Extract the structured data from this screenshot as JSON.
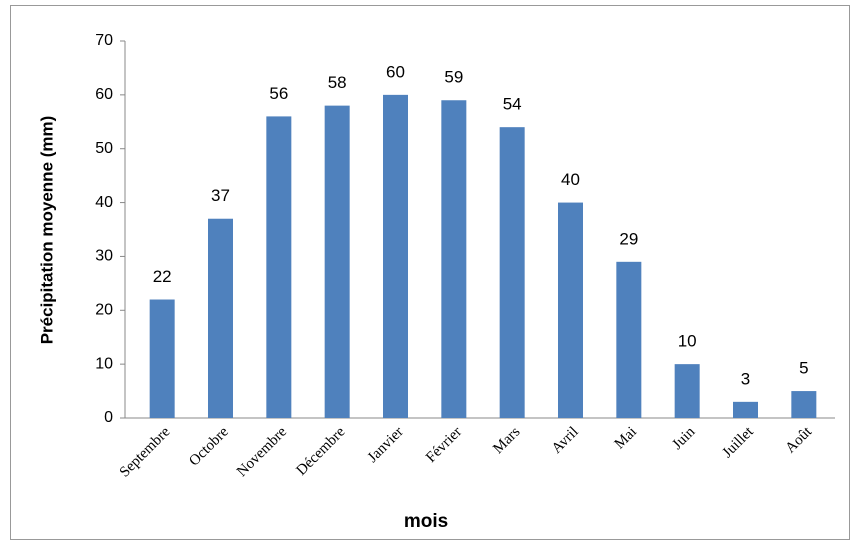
{
  "chart_data": {
    "type": "bar",
    "categories": [
      "Septembre",
      "Octobre",
      "Novembre",
      "Décembre",
      "Janvier",
      "Février",
      "Mars",
      "Avril",
      "Mai",
      "Juin",
      "Juillet",
      "Août"
    ],
    "values": [
      22,
      37,
      56,
      58,
      60,
      59,
      54,
      40,
      29,
      10,
      3,
      5
    ],
    "color": "#4f81bd",
    "ylim": [
      0,
      70
    ],
    "yticks": [
      0,
      10,
      20,
      30,
      40,
      50,
      60,
      70
    ],
    "grid": false,
    "x_label": "mois",
    "y_label": "Précipitation moyenne (mm)"
  }
}
